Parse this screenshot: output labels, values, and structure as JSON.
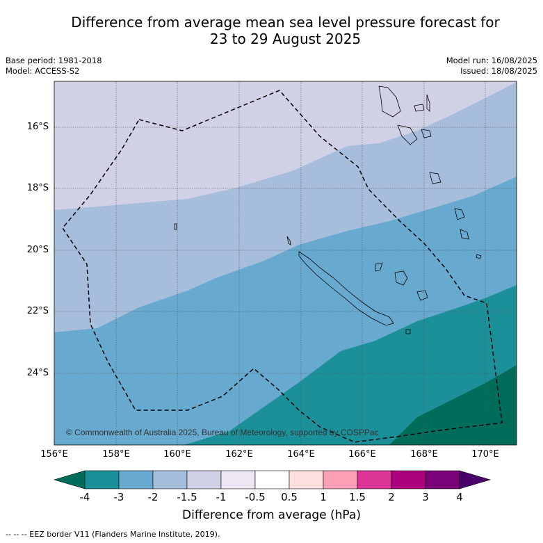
{
  "title_line1": "Difference from average mean sea level pressure forecast for",
  "title_line2": "23 to 29 August 2025",
  "meta": {
    "base_period": "Base period: 1981-2018",
    "model": "Model: ACCESS-S2",
    "model_run": "Model run: 16/08/2025",
    "issued": "Issued: 18/08/2025"
  },
  "map": {
    "lat_labels": [
      "16°S",
      "18°S",
      "20°S",
      "22°S",
      "24°S"
    ],
    "lon_labels": [
      "156°E",
      "158°E",
      "160°E",
      "162°E",
      "164°E",
      "166°E",
      "168°E",
      "170°E"
    ],
    "copyright": "© Commonwealth of Australia 2025, Bureau of Meteorology, supported by COSPPac",
    "category_colors": {
      "below_-3": "#006d5b",
      "-3_to_-2": "#1b9099",
      "-2_to_-1.5": "#67a9cf",
      "-1.5_to_-1": "#a6bddb",
      "-1_to_-0.5": "#d0d1e6"
    }
  },
  "colorbar": {
    "title": "Difference from average (hPa)",
    "ticks": [
      "-4",
      "-3",
      "-2",
      "-1.5",
      "-1",
      "-0.5",
      "0.5",
      "1",
      "1.5",
      "2",
      "3",
      "4"
    ],
    "colors": [
      "#006d5b",
      "#1b9099",
      "#67a9cf",
      "#a6bddb",
      "#d0d1e6",
      "#ece7f2",
      "#ffffff",
      "#fde0dd",
      "#fa9fb5",
      "#dd3497",
      "#ae017e",
      "#7a0177",
      "#49006a"
    ]
  },
  "footnote": "--  --  -- EEZ border V11 (Flanders Marine Institute, 2019)."
}
